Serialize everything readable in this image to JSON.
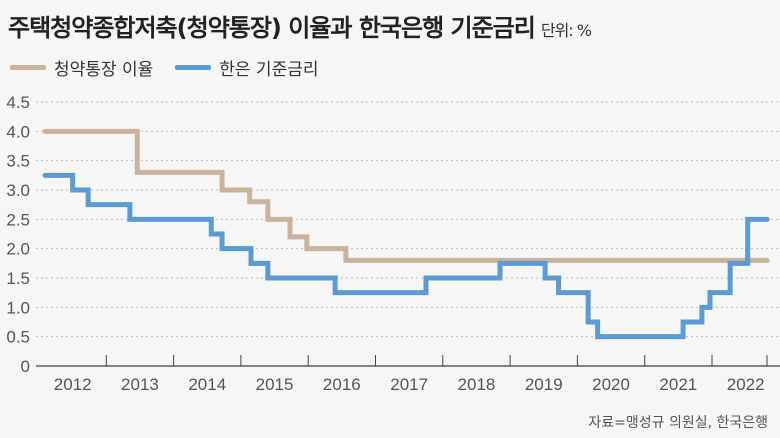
{
  "chart_data": {
    "type": "line",
    "step": true,
    "title": "주택청약종합저축(청약통장) 이율과 한국은행 기준금리",
    "unit": "단위: %",
    "source": "자료=맹성규 의원실, 한국은행",
    "xlabel": "",
    "ylabel": "",
    "ylim": [
      0,
      4.5
    ],
    "yticks": [
      "0",
      "0.5",
      "1.0",
      "1.5",
      "2.0",
      "2.5",
      "3.0",
      "3.5",
      "4.0",
      "4.5"
    ],
    "xticks": [
      "2012",
      "2013",
      "2014",
      "2015",
      "2016",
      "2017",
      "2018",
      "2019",
      "2020",
      "2021",
      "2022"
    ],
    "xlim": [
      2012.0,
      2023.1
    ],
    "grid": true,
    "legend_position": "top-left",
    "series": [
      {
        "name": "청약통장 이율",
        "color": "#c9b39c",
        "points": [
          [
            2012.09,
            4.0
          ],
          [
            2013.46,
            3.3
          ],
          [
            2014.72,
            3.0
          ],
          [
            2015.13,
            2.8
          ],
          [
            2015.4,
            2.5
          ],
          [
            2015.73,
            2.2
          ],
          [
            2015.98,
            2.0
          ],
          [
            2016.56,
            1.8
          ],
          [
            2022.82,
            1.8
          ]
        ]
      },
      {
        "name": "한은 기준금리",
        "color": "#5b9bd5",
        "points": [
          [
            2012.09,
            3.25
          ],
          [
            2012.5,
            3.0
          ],
          [
            2012.73,
            2.75
          ],
          [
            2013.35,
            2.5
          ],
          [
            2014.56,
            2.25
          ],
          [
            2014.72,
            2.0
          ],
          [
            2015.15,
            1.75
          ],
          [
            2015.4,
            1.5
          ],
          [
            2016.4,
            1.25
          ],
          [
            2017.75,
            1.5
          ],
          [
            2018.85,
            1.75
          ],
          [
            2019.52,
            1.5
          ],
          [
            2019.72,
            1.25
          ],
          [
            2020.16,
            0.75
          ],
          [
            2020.3,
            0.5
          ],
          [
            2021.57,
            0.75
          ],
          [
            2021.85,
            1.0
          ],
          [
            2021.97,
            1.25
          ],
          [
            2022.27,
            1.75
          ],
          [
            2022.53,
            2.5
          ],
          [
            2022.82,
            2.5
          ]
        ]
      }
    ]
  }
}
